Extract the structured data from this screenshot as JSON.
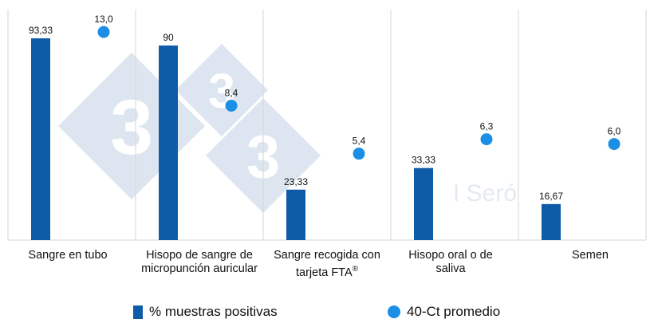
{
  "chart_data": {
    "type": "bar+scatter",
    "categories": [
      "Sangre en tubo",
      "Hisopo de sangre de micropunción auricular",
      "Sangre recogida con tarjeta FTA",
      "Hisopo oral o de saliva",
      "Semen"
    ],
    "series": [
      {
        "name": "% muestras positivas",
        "kind": "bar",
        "values": [
          93.33,
          90,
          23.33,
          33.33,
          16.67
        ],
        "labels": [
          "93,33",
          "90",
          "23,33",
          "33,33",
          "16,67"
        ]
      },
      {
        "name": "40-Ct promedio",
        "kind": "point",
        "values": [
          13.0,
          8.4,
          5.4,
          6.3,
          6.0
        ],
        "labels": [
          "13,0",
          "8,4",
          "5,4",
          "6,3",
          "6,0"
        ]
      }
    ],
    "ylim": [
      0,
      100
    ],
    "ylim_secondary": [
      0,
      15
    ],
    "grid": "vertical-separators",
    "legend_position": "bottom"
  },
  "colors": {
    "bar": "#0e5ba8",
    "point": "#1b8fe5",
    "grid": "#d5d5d5",
    "watermark": "#dde6f0"
  },
  "watermark": {
    "digit": "3",
    "text": "I Seró"
  },
  "superscript": "®"
}
